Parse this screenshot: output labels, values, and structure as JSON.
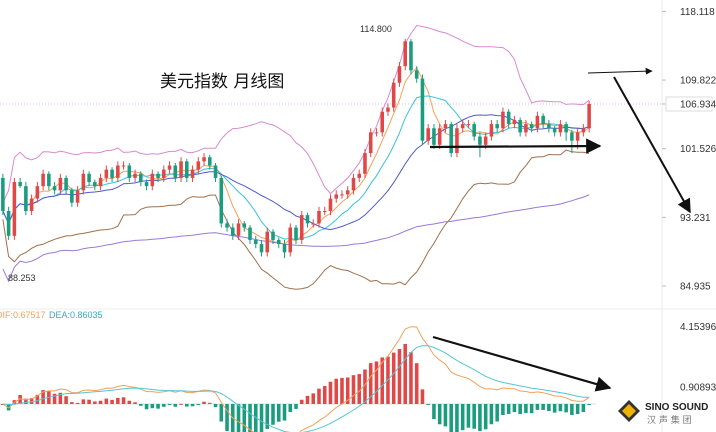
{
  "chart_data": {
    "type": "candlestick",
    "title": "美元指数 月线图",
    "price_axis": {
      "min": 83.0,
      "max": 119.5,
      "tick_labels": [
        "118.118",
        "109.822",
        "106.934",
        "101.526",
        "93.231",
        "84.935"
      ],
      "current_price": 106.934,
      "current_color": "#ff3333"
    },
    "annotations": {
      "high_label": "114.800",
      "low_label": "88.253"
    },
    "colors": {
      "up": "#e04848",
      "down": "#1a9c7e",
      "boll_upper": "#d98ad0",
      "boll_lower": "#a0704a",
      "ma_fast": "#f2a15a",
      "ma_mid": "#39c3d6",
      "ma_slow": "#4d5bc9",
      "ma_long": "#9a7ad6",
      "dif": "#f2a15a",
      "dea": "#56c5d2",
      "arrow": "#111111"
    },
    "candles": {
      "open": [
        98.0,
        94.0,
        91.0,
        97.5,
        97.0,
        94.0,
        95.5,
        97.0,
        98.5,
        97.0,
        96.5,
        98.0,
        96.5,
        95.0,
        96.5,
        98.5,
        97.5,
        97.0,
        98.0,
        99.0,
        98.0,
        99.5,
        99.5,
        98.0,
        98.5,
        97.5,
        97.0,
        98.5,
        98.0,
        99.0,
        99.5,
        98.0,
        100.0,
        98.0,
        99.0,
        100.0,
        100.5,
        99.5,
        98.0,
        92.5,
        92.0,
        91.0,
        92.5,
        92.0,
        90.5,
        90.0,
        89.0,
        91.5,
        90.5,
        90.0,
        89.0,
        92.0,
        90.5,
        93.5,
        92.5,
        92.5,
        94.0,
        94.0,
        95.5,
        96.0,
        96.0,
        96.5,
        98.0,
        98.5,
        101.0,
        103.5,
        103.5,
        106.0,
        106.5,
        109.5,
        111.5,
        114.5,
        111.0,
        110.0,
        102.5,
        104.0,
        102.0,
        104.0,
        104.5,
        101.0,
        104.0,
        104.5,
        104.5,
        103.0,
        102.0,
        103.0,
        104.5,
        104.0,
        106.0,
        104.5,
        105.0,
        103.5,
        104.5,
        104.0,
        105.5,
        104.5,
        104.0,
        103.5,
        104.5,
        103.5,
        102.5,
        103.5,
        104.0
      ],
      "close": [
        94.0,
        91.0,
        97.5,
        97.0,
        94.0,
        95.5,
        97.0,
        98.5,
        97.0,
        96.5,
        98.0,
        96.5,
        95.0,
        96.5,
        98.5,
        97.5,
        97.0,
        98.0,
        99.0,
        98.0,
        99.5,
        99.5,
        98.0,
        98.5,
        97.5,
        97.0,
        98.5,
        98.0,
        99.0,
        99.5,
        98.0,
        100.0,
        98.0,
        99.0,
        100.0,
        100.5,
        99.5,
        98.0,
        92.5,
        92.0,
        91.0,
        92.5,
        92.0,
        90.5,
        90.0,
        89.0,
        91.5,
        90.5,
        90.0,
        89.0,
        92.0,
        90.5,
        93.5,
        92.5,
        92.5,
        94.0,
        94.0,
        95.5,
        96.0,
        96.0,
        96.5,
        98.0,
        98.5,
        101.0,
        103.5,
        103.5,
        106.0,
        106.5,
        109.5,
        111.5,
        114.5,
        111.0,
        110.0,
        102.5,
        104.0,
        102.0,
        104.0,
        104.5,
        101.0,
        104.0,
        104.5,
        104.5,
        103.0,
        102.0,
        103.0,
        104.5,
        104.0,
        106.0,
        104.5,
        105.0,
        103.5,
        104.5,
        104.0,
        105.5,
        104.5,
        104.0,
        103.5,
        104.5,
        103.5,
        102.5,
        103.5,
        104.0,
        106.934
      ],
      "high": [
        98.5,
        94.5,
        98.0,
        98.0,
        97.5,
        96.0,
        97.5,
        99.0,
        98.8,
        97.5,
        98.5,
        98.3,
        96.8,
        97.0,
        99.0,
        98.8,
        97.8,
        98.5,
        99.5,
        99.3,
        100.0,
        100.0,
        99.8,
        99.0,
        98.8,
        97.8,
        99.0,
        98.8,
        99.5,
        100.0,
        99.8,
        100.5,
        100.3,
        99.5,
        100.5,
        101.0,
        100.8,
        99.8,
        98.3,
        93.0,
        92.5,
        93.0,
        92.8,
        92.3,
        91.0,
        90.5,
        92.0,
        91.8,
        90.8,
        90.5,
        92.5,
        92.3,
        94.0,
        93.8,
        93.0,
        94.5,
        94.5,
        96.0,
        96.5,
        96.5,
        97.0,
        98.5,
        99.0,
        101.5,
        104.0,
        104.0,
        106.5,
        107.0,
        110.0,
        112.0,
        114.8,
        114.8,
        111.5,
        110.5,
        104.5,
        104.5,
        104.5,
        105.0,
        104.8,
        104.5,
        105.0,
        105.0,
        104.8,
        103.5,
        103.5,
        105.0,
        105.0,
        106.5,
        106.3,
        105.5,
        105.3,
        105.0,
        104.8,
        106.0,
        105.8,
        105.0,
        104.3,
        105.0,
        104.8,
        103.8,
        104.0,
        104.5,
        107.3
      ],
      "low": [
        93.5,
        90.5,
        90.5,
        96.8,
        93.5,
        93.5,
        95.0,
        96.5,
        96.5,
        96.0,
        96.0,
        96.0,
        94.5,
        94.5,
        96.0,
        97.0,
        96.5,
        96.5,
        97.5,
        97.5,
        97.5,
        99.0,
        97.5,
        97.5,
        97.0,
        96.5,
        96.5,
        97.5,
        97.5,
        98.5,
        97.5,
        97.5,
        97.5,
        97.5,
        98.5,
        99.5,
        99.0,
        97.5,
        92.0,
        91.5,
        90.5,
        90.5,
        91.5,
        90.0,
        89.5,
        88.5,
        88.5,
        90.0,
        89.5,
        88.3,
        88.5,
        90.0,
        90.0,
        92.0,
        92.0,
        92.0,
        93.5,
        93.5,
        95.0,
        95.5,
        95.5,
        96.0,
        97.5,
        98.0,
        100.5,
        103.0,
        103.0,
        105.5,
        106.0,
        109.0,
        111.0,
        110.5,
        109.5,
        102.0,
        102.0,
        101.5,
        101.5,
        103.5,
        100.5,
        100.5,
        103.5,
        104.0,
        102.5,
        100.5,
        101.5,
        102.5,
        103.5,
        103.5,
        104.0,
        104.0,
        103.0,
        103.0,
        103.5,
        103.5,
        104.0,
        103.5,
        103.0,
        103.0,
        102.5,
        101.0,
        101.5,
        103.0,
        103.5
      ]
    },
    "macd": {
      "dif_label": "DIF:0.67517",
      "dea_label": "DEA:0.86035",
      "axis": {
        "min": -1.5,
        "max": 4.6,
        "tick_labels": [
          "4.15396",
          "0.90893"
        ]
      }
    }
  },
  "watermark": {
    "text": "SINO SOUND",
    "cn": "汉 声 集 团"
  }
}
